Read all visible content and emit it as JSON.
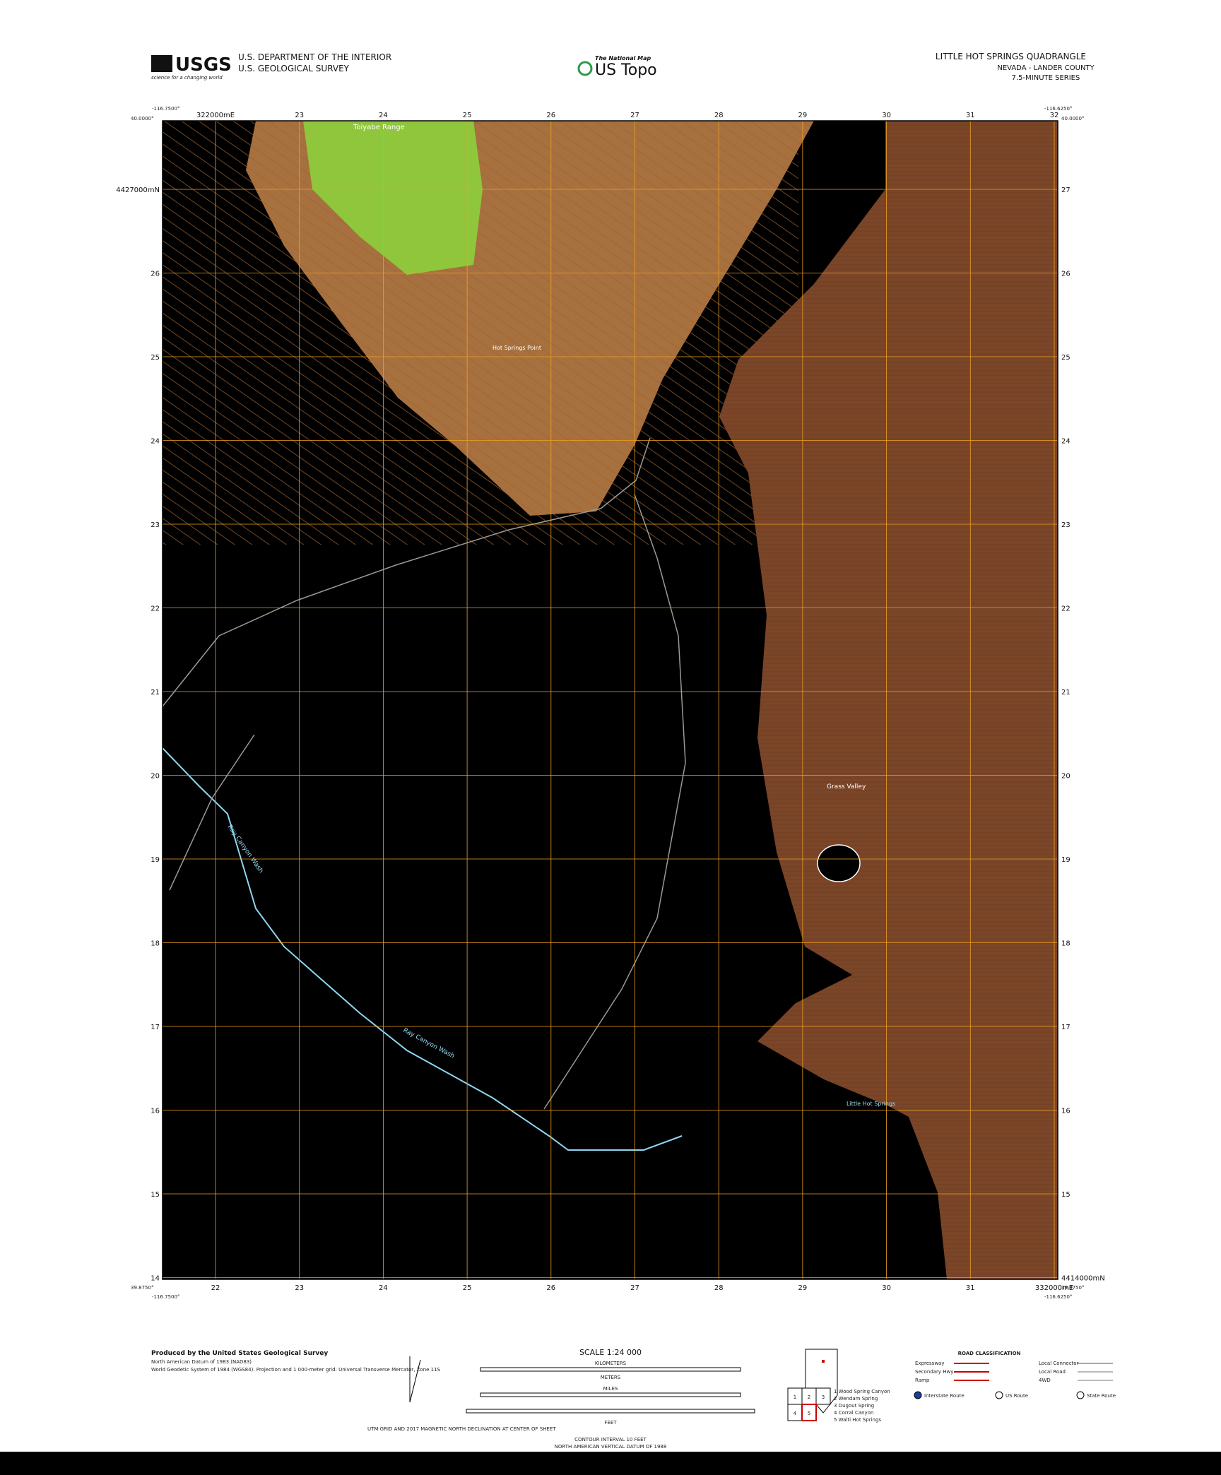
{
  "header": {
    "agency_logo": "USGS",
    "agency_tagline": "science for a changing world",
    "department": "U.S. DEPARTMENT OF THE INTERIOR",
    "survey": "U.S. GEOLOGICAL SURVEY",
    "national_map": "The National Map",
    "product": "US Topo",
    "quadrangle": "LITTLE HOT SPRINGS QUADRANGLE",
    "location": "NEVADA - LANDER COUNTY",
    "series": "7.5-MINUTE SERIES"
  },
  "corners": {
    "top_left_lon": "-116.7500°",
    "top_left_lat": "40.0000°",
    "top_right_lon": "-116.6250°",
    "top_right_lat": "40.0000°",
    "bottom_left_lon": "-116.7500°",
    "bottom_left_lat": "39.8750°",
    "bottom_right_lon": "-116.6250°",
    "bottom_right_lat": "39.8750°"
  },
  "grid": {
    "top": [
      "322000mE",
      "23",
      "24",
      "25",
      "26",
      "27",
      "28",
      "29",
      "30",
      "31",
      "32"
    ],
    "bottom": [
      "22",
      "23",
      "24",
      "25",
      "26",
      "27",
      "28",
      "29",
      "30",
      "31",
      "332000mE"
    ],
    "left": [
      "4427000mN",
      "26",
      "25",
      "24",
      "23",
      "22",
      "21",
      "20",
      "19",
      "18",
      "17",
      "16",
      "15",
      "14"
    ],
    "right": [
      "27",
      "26",
      "25",
      "24",
      "23",
      "22",
      "21",
      "20",
      "19",
      "18",
      "17",
      "16",
      "15",
      "4414000mN"
    ]
  },
  "features": {
    "range": "Toiyabe Range",
    "valley": "Grass Valley",
    "wash_upper": "Ray Canyon Wash",
    "wash_lower": "Ray Canyon Wash",
    "springs": "Little Hot Springs",
    "point": "Hot Springs Point"
  },
  "footer": {
    "producer": "Produced by the United States Geological Survey",
    "datum": "North American Datum of 1983 (NAD83)",
    "grid_note": "World Geodetic System of 1984 (WGS84). Projection and 1 000-meter grid: Universal Transverse Mercator, Zone 11S",
    "scale": "SCALE 1:24 000",
    "kilometers": "KILOMETERS",
    "meters": "METERS",
    "miles": "MILES",
    "feet": "FEET",
    "contour": "CONTOUR INTERVAL 10 FEET",
    "vertical_datum": "NORTH AMERICAN VERTICAL DATUM OF 1988",
    "grid_declination": "UTM GRID AND 2017 MAGNETIC NORTH DECLINATION AT CENTER OF SHEET",
    "road_title": "ROAD CLASSIFICATION",
    "roads": [
      "Expressway",
      "Secondary Hwy",
      "Ramp",
      "Local Connector",
      "Local Road",
      "4WD"
    ],
    "shields": [
      "Interstate Route",
      "US Route",
      "State Route"
    ],
    "adjoining": [
      "1 Wood Spring Canyon",
      "2 Wendam Spring",
      "3 Dugout Spring",
      "4 Corral Canyon",
      "5 Walti Hot Springs"
    ],
    "quad_index": [
      "1",
      "2",
      "3",
      "4",
      "5"
    ]
  }
}
